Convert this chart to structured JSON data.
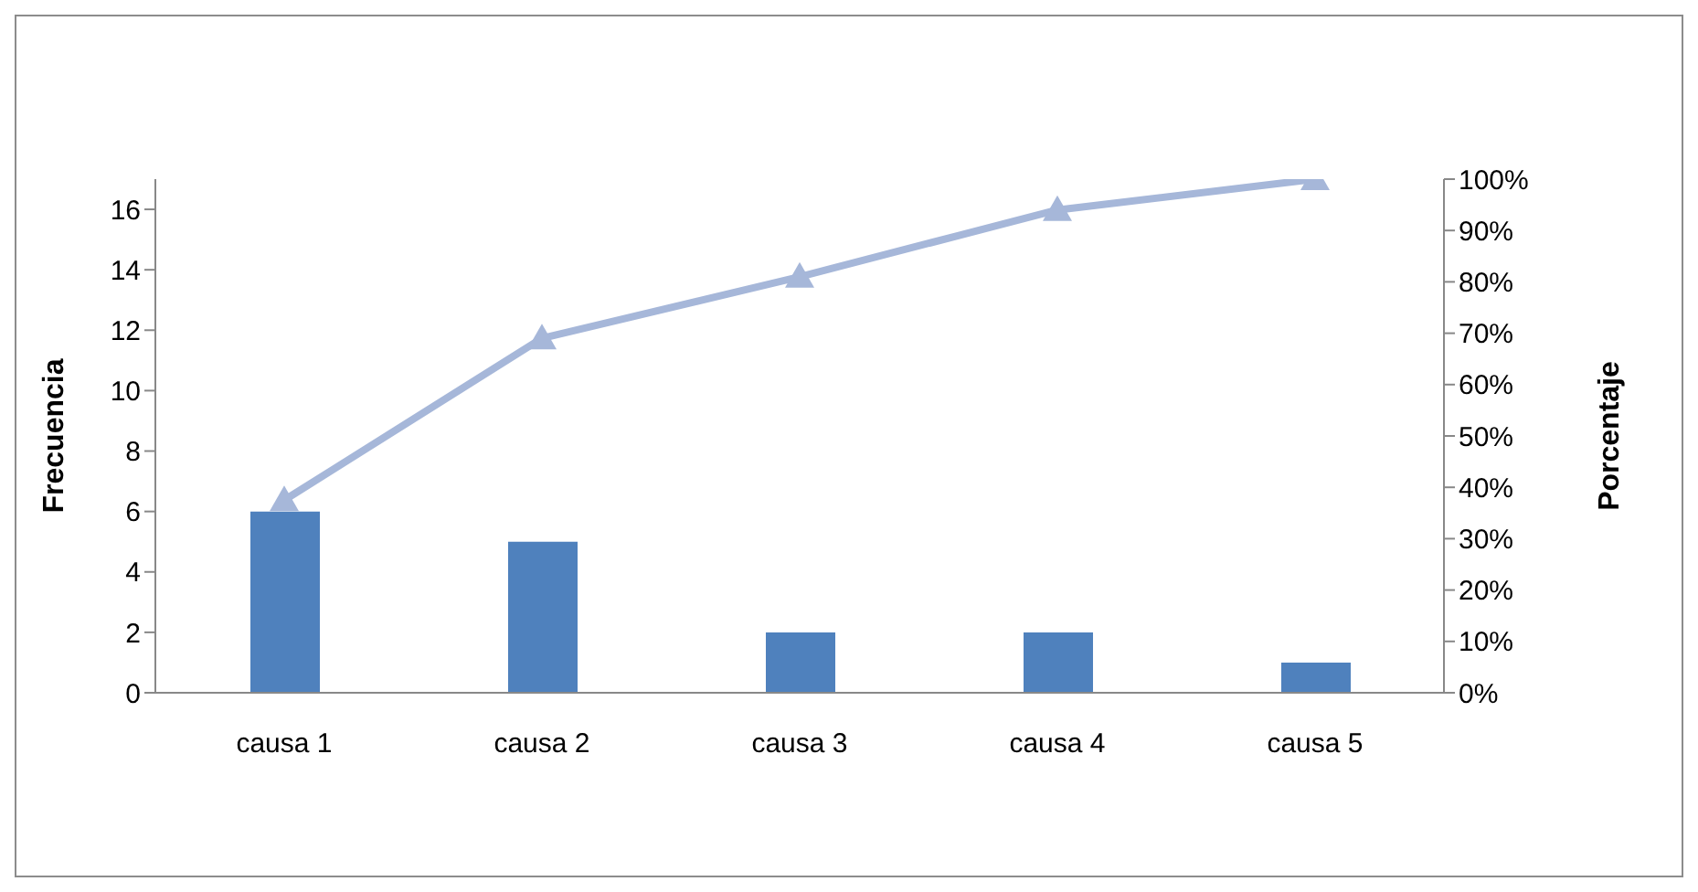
{
  "chart_data": {
    "type": "bar",
    "categories": [
      "causa 1",
      "causa 2",
      "causa 3",
      "causa 4",
      "causa 5"
    ],
    "series": [
      {
        "color": "#4f81bd",
        "values": [
          6,
          5,
          2,
          2,
          1
        ]
      },
      {
        "type": "line",
        "axis": "y2",
        "color": "#a6b7d9",
        "marker": "triangle",
        "values": [
          37.5,
          69,
          81,
          94,
          100
        ]
      }
    ],
    "ylabel": "Frecuencia",
    "y2label": "Porcentaje",
    "ylim": [
      0,
      17
    ],
    "yticks": [
      0,
      2,
      4,
      6,
      8,
      10,
      12,
      14,
      16
    ],
    "y2lim": [
      0,
      100
    ],
    "y2ticks": [
      {
        "value": 0,
        "label": "0%"
      },
      {
        "value": 10,
        "label": "10%"
      },
      {
        "value": 20,
        "label": "20%"
      },
      {
        "value": 30,
        "label": "30%"
      },
      {
        "value": 40,
        "label": "40%"
      },
      {
        "value": 50,
        "label": "50%"
      },
      {
        "value": 60,
        "label": "60%"
      },
      {
        "value": 70,
        "label": "70%"
      },
      {
        "value": 80,
        "label": "80%"
      },
      {
        "value": 90,
        "label": "90%"
      },
      {
        "value": 100,
        "label": "100%"
      }
    ],
    "grid": false,
    "legend": false
  }
}
